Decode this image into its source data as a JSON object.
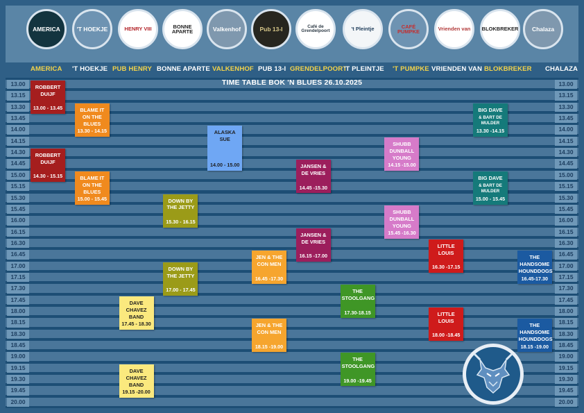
{
  "logos": [
    {
      "id": "america",
      "text": "AMERICA",
      "subtext": "",
      "bg": "#13343f",
      "fg": "#ffffff",
      "icon": "chevron-up-icon"
    },
    {
      "id": "hoekje",
      "text": "'T HOEKJE",
      "subtext": "",
      "bg": "#6e93b2",
      "fg": "#ffffff",
      "icon": ""
    },
    {
      "id": "henry",
      "text": "HENRY VIII",
      "subtext": "",
      "bg": "#ffffff",
      "fg": "#b3252a",
      "icon": "crown-icon"
    },
    {
      "id": "bonne",
      "text": "BONNE APARTE",
      "subtext": "",
      "bg": "#ffffff",
      "fg": "#222222",
      "icon": ""
    },
    {
      "id": "valkenhof",
      "text": "Valkenhof",
      "subtext": "",
      "bg": "#7f98ae",
      "fg": "#ffffff",
      "icon": ""
    },
    {
      "id": "pub13",
      "text": "Pub 13-I",
      "subtext": "",
      "bg": "#27261f",
      "fg": "#d8c88a",
      "icon": ""
    },
    {
      "id": "grendelpoort",
      "text": "Café de Grendelpoort",
      "subtext": "",
      "bg": "#ffffff",
      "fg": "#2d3a45",
      "icon": ""
    },
    {
      "id": "pleintje",
      "text": "'t Pleintje",
      "subtext": "",
      "bg": "#f3f6f8",
      "fg": "#1f3d5a",
      "icon": ""
    },
    {
      "id": "pumpke",
      "text": "CAFÉ PUMPKE",
      "subtext": "",
      "bg": "#6e93b2",
      "fg": "#c52d2d",
      "icon": ""
    },
    {
      "id": "vrienden",
      "text": "Vrienden van",
      "subtext": "",
      "bg": "#ffffff",
      "fg": "#b23a3a",
      "icon": ""
    },
    {
      "id": "blokbreker",
      "text": "BLOKBREKER",
      "subtext": "",
      "bg": "#ffffff",
      "fg": "#222222",
      "icon": "cutlery-icon"
    },
    {
      "id": "chalaza",
      "text": "Chalaza",
      "subtext": "",
      "bg": "#7f98ae",
      "fg": "#ffffff",
      "icon": ""
    }
  ],
  "venues": [
    {
      "label": "AMERICA",
      "color": "#f3d34a"
    },
    {
      "label": "'T HOEKJE",
      "color": "#ffffff"
    },
    {
      "label": "PUB HENRY",
      "color": "#f3d34a"
    },
    {
      "label": "BONNE APARTE",
      "color": "#ffffff"
    },
    {
      "label": "VALKENHOF",
      "color": "#f3d34a"
    },
    {
      "label": "PUB 13-I",
      "color": "#ffffff"
    },
    {
      "label": "GRENDELPOORT",
      "color": "#f3d34a"
    },
    {
      "label": "'T PLEINTJE",
      "color": "#ffffff"
    },
    {
      "label": "'T PUMPKE",
      "color": "#f3d34a"
    },
    {
      "label": "VRIENDEN VAN",
      "color": "#ffffff"
    },
    {
      "label": "BLOKBREKER",
      "color": "#f3d34a"
    },
    {
      "label": "CHALAZA",
      "color": "#ffffff"
    }
  ],
  "title": "TIME TABLE BOK 'N BLUES 26.10.2025",
  "times": [
    "13.00",
    "13.15",
    "13.30",
    "13.45",
    "14.00",
    "14.15",
    "14.30",
    "14.45",
    "15.00",
    "15.15",
    "15.30",
    "15.45",
    "16.00",
    "16.15",
    "16.30",
    "16.45",
    "17.00",
    "17.15",
    "17.30",
    "17.45",
    "18.00",
    "18.15",
    "18.30",
    "18.45",
    "19.00",
    "19.15",
    "19.30",
    "19.45",
    "20.00"
  ],
  "colors": {
    "row_light": "#6f98b8",
    "row_dark": "#2a5d86",
    "time_bg": "#6f98b8",
    "badge_border": "#e8eef5"
  },
  "events": [
    {
      "venue": 0,
      "start": "13.00",
      "end": "13.45",
      "name": "ROBBERT DUIJF",
      "time": "13.00 - 13.45",
      "color": "#a51e1e",
      "text": "light"
    },
    {
      "venue": 0,
      "start": "14.30",
      "end": "15.15",
      "name": "ROBBERT DUIJF",
      "time": "14.30 - 15.15",
      "color": "#a51e1e",
      "text": "light"
    },
    {
      "venue": 1,
      "start": "13.30",
      "end": "14.15",
      "name": "BLAME IT ON THE BLUES",
      "time": "13.30 - 14.15",
      "color": "#f08a1e",
      "text": "light"
    },
    {
      "venue": 1,
      "start": "15.00",
      "end": "15.45",
      "name": "BLAME IT ON THE BLUES",
      "time": "15.00 - 15.45",
      "color": "#f08a1e",
      "text": "light"
    },
    {
      "venue": 2,
      "start": "17.45",
      "end": "18.30",
      "name": "DAVE CHAVEZ BAND",
      "time": "17.45 - 18.30",
      "color": "#fbe97e",
      "text": "dark"
    },
    {
      "venue": 2,
      "start": "19.15",
      "end": "20.00",
      "name": "DAVE CHAVEZ BAND",
      "time": "19.15 -20.00",
      "color": "#fbe97e",
      "text": "dark"
    },
    {
      "venue": 3,
      "start": "15.30",
      "end": "16.15",
      "name": "DOWN BY THE JETTY",
      "time": "15.30 - 16.15",
      "color": "#9b9b18",
      "text": "light"
    },
    {
      "venue": 3,
      "start": "17.00",
      "end": "17.45",
      "name": "DOWN BY THE JETTY",
      "time": "17.00 - 17.45",
      "color": "#9b9b18",
      "text": "light"
    },
    {
      "venue": 4,
      "start": "14.00",
      "end": "15.00",
      "name": "ALASKA SUE",
      "time": "14.00 - 15.00",
      "color": "#6fa7f4",
      "text": "dark"
    },
    {
      "venue": 5,
      "start": "16.45",
      "end": "17.30",
      "name": "JEN & THE CON MEN",
      "time": "16.45 -17.30",
      "color": "#f6a52e",
      "text": "light"
    },
    {
      "venue": 5,
      "start": "18.15",
      "end": "19.00",
      "name": "JEN & THE CON MEN",
      "time": "18.15 -19.00",
      "color": "#f6a52e",
      "text": "light"
    },
    {
      "venue": 6,
      "start": "14.45",
      "end": "15.30",
      "name": "JANSEN & DE VRIES",
      "time": "14.45 -15.30",
      "color": "#9c1e5c",
      "text": "light"
    },
    {
      "venue": 6,
      "start": "16.15",
      "end": "17.00",
      "name": "JANSEN & DE VRIES",
      "time": "16.15 -17.00",
      "color": "#9c1e5c",
      "text": "light"
    },
    {
      "venue": 7,
      "start": "17.30",
      "end": "18.15",
      "name": "THE STOOLGANG",
      "time": "17.30-18.15",
      "color": "#3f9626",
      "text": "light"
    },
    {
      "venue": 7,
      "start": "19.00",
      "end": "19.45",
      "name": "THE STOOLGANG",
      "time": "19.00 -19.45",
      "color": "#3f9626",
      "text": "light"
    },
    {
      "venue": 8,
      "start": "14.15",
      "end": "15.00",
      "name": "SHUBB DUNBALL YOUNG",
      "time": "14.15 -15.00",
      "color": "#d67bc9",
      "text": "light"
    },
    {
      "venue": 8,
      "start": "15.45",
      "end": "16.30",
      "name": "SHUBB DUNBALL YOUNG",
      "time": "15.45 -16.30",
      "color": "#d67bc9",
      "text": "light"
    },
    {
      "venue": 9,
      "start": "16.30",
      "end": "17.15",
      "name": "LITTLE LOUIS",
      "time": "16.30 -17.15",
      "color": "#cf1b1b",
      "text": "light"
    },
    {
      "venue": 9,
      "start": "18.00",
      "end": "18.45",
      "name": "LITTLE LOUIS",
      "time": "18.00 -18.45",
      "color": "#cf1b1b",
      "text": "light"
    },
    {
      "venue": 10,
      "start": "13.30",
      "end": "14.15",
      "name": "BIG DAVE",
      "sub": "& BART DE MULDER",
      "time": "13.30 -14.15",
      "color": "#157a7a",
      "text": "light"
    },
    {
      "venue": 10,
      "start": "15.00",
      "end": "15.45",
      "name": "BIG DAVE",
      "sub": "& BART DE MULDER",
      "time": "15.00 - 15.45",
      "color": "#157a7a",
      "text": "light"
    },
    {
      "venue": 11,
      "start": "16.45",
      "end": "17.30",
      "name": "THE HANDSOME HOUNDDOGS",
      "time": "16.45-17.30",
      "color": "#1b5aa1",
      "text": "light"
    },
    {
      "venue": 11,
      "start": "18.15",
      "end": "19.00",
      "name": "THE HANDSOME HOUNDDOGS",
      "time": "18.15 -19.00",
      "color": "#1b5aa1",
      "text": "light"
    }
  ]
}
